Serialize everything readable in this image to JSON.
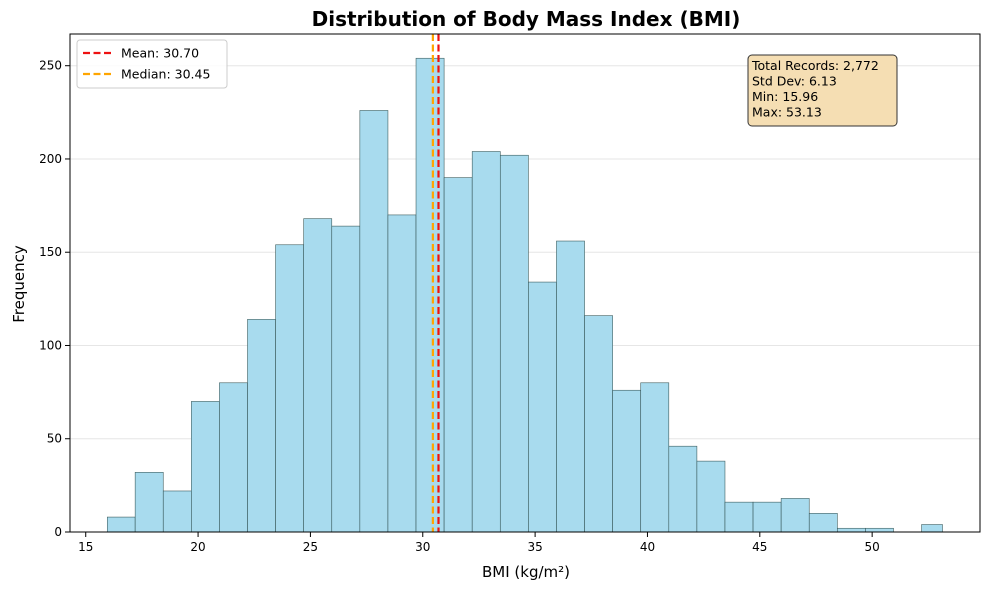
{
  "chart_data": {
    "type": "bar",
    "title": "Distribution of Body Mass Index (BMI)",
    "xlabel": "BMI (kg/m²)",
    "ylabel": "Frequency",
    "xlim": [
      14.3,
      54.8
    ],
    "ylim": [
      0,
      267
    ],
    "x_ticks": [
      15,
      20,
      25,
      30,
      35,
      40,
      45,
      50
    ],
    "y_ticks": [
      0,
      50,
      100,
      150,
      200,
      250
    ],
    "grid": "y",
    "bin_edges": [
      15.96,
      17.2,
      18.45,
      19.7,
      20.95,
      22.2,
      23.45,
      24.7,
      25.95,
      27.2,
      28.45,
      29.7,
      30.95,
      32.2,
      33.45,
      34.7,
      35.95,
      37.2,
      38.45,
      39.7,
      40.95,
      42.2,
      43.45,
      44.7,
      45.95,
      47.2,
      48.45,
      49.7,
      50.95,
      52.2,
      53.13
    ],
    "values": [
      8,
      32,
      22,
      70,
      80,
      114,
      154,
      168,
      164,
      226,
      170,
      254,
      190,
      204,
      202,
      134,
      156,
      116,
      76,
      80,
      46,
      38,
      16,
      16,
      18,
      10,
      2,
      2,
      0,
      4
    ],
    "bar_color": "#a8dbee",
    "bar_edge_color": "#2f4f4f",
    "reference_lines": [
      {
        "label": "Mean: 30.70",
        "value": 30.7,
        "color": "#ee1111",
        "style": "dashed"
      },
      {
        "label": "Median: 30.45",
        "value": 30.45,
        "color": "#ffa500",
        "style": "dashed"
      }
    ],
    "legend_placement": "top-left",
    "stats_box": {
      "lines": [
        "Total Records: 2,772",
        "Std Dev: 6.13",
        "Min: 15.96",
        "Max: 53.13"
      ],
      "background": "#f5deb3",
      "placement": "top-right"
    }
  }
}
